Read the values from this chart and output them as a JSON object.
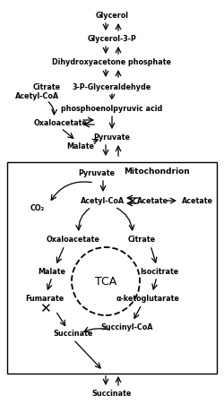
{
  "background": "#ffffff",
  "fig_width": 2.5,
  "fig_height": 4.52,
  "dpi": 100,
  "fs": 5.8,
  "fs_bold": 6.0,
  "fs_mito": 6.5,
  "fs_tca": 9,
  "lw": 0.9,
  "labels": {
    "Glycerol": "Glycerol",
    "Glycerol3P": "Glycerol-3-P",
    "DHAP": "Dihydroxyacetone phosphate",
    "G3A": "3-P-Glyceraldehyde",
    "PEP": "phosphoenolpyruvic acid",
    "Pyruvate_top": "Pyruvate",
    "Malate_top": "Malate",
    "Oxaloacetate_top": "Oxaloacetate",
    "Citrate_top": "Citrate",
    "AcetylCoA_top": "Acetyl-CoA",
    "Pyruvate_mid": "Pyruvate",
    "Mito": "Mitochondrion",
    "AcetylCoA_mid": "Acetyl-CoA",
    "Acetate_in": "Acetate",
    "Acetate_out": "Acetate",
    "CO2": "CO₂",
    "Oxaloacetate_mid": "Oxaloacetate",
    "Citrate_mid": "Citrate",
    "Malate_mid": "Malate",
    "Isocitrate": "Isocitrate",
    "TCA": "TCA",
    "Fumarate": "Fumarate",
    "alpha_kg": "α-ketoglutarate",
    "Succinate_mid": "Succinate",
    "SuccinylCoA": "Succinyl-CoA",
    "Succinate_bot": "Succinate"
  }
}
